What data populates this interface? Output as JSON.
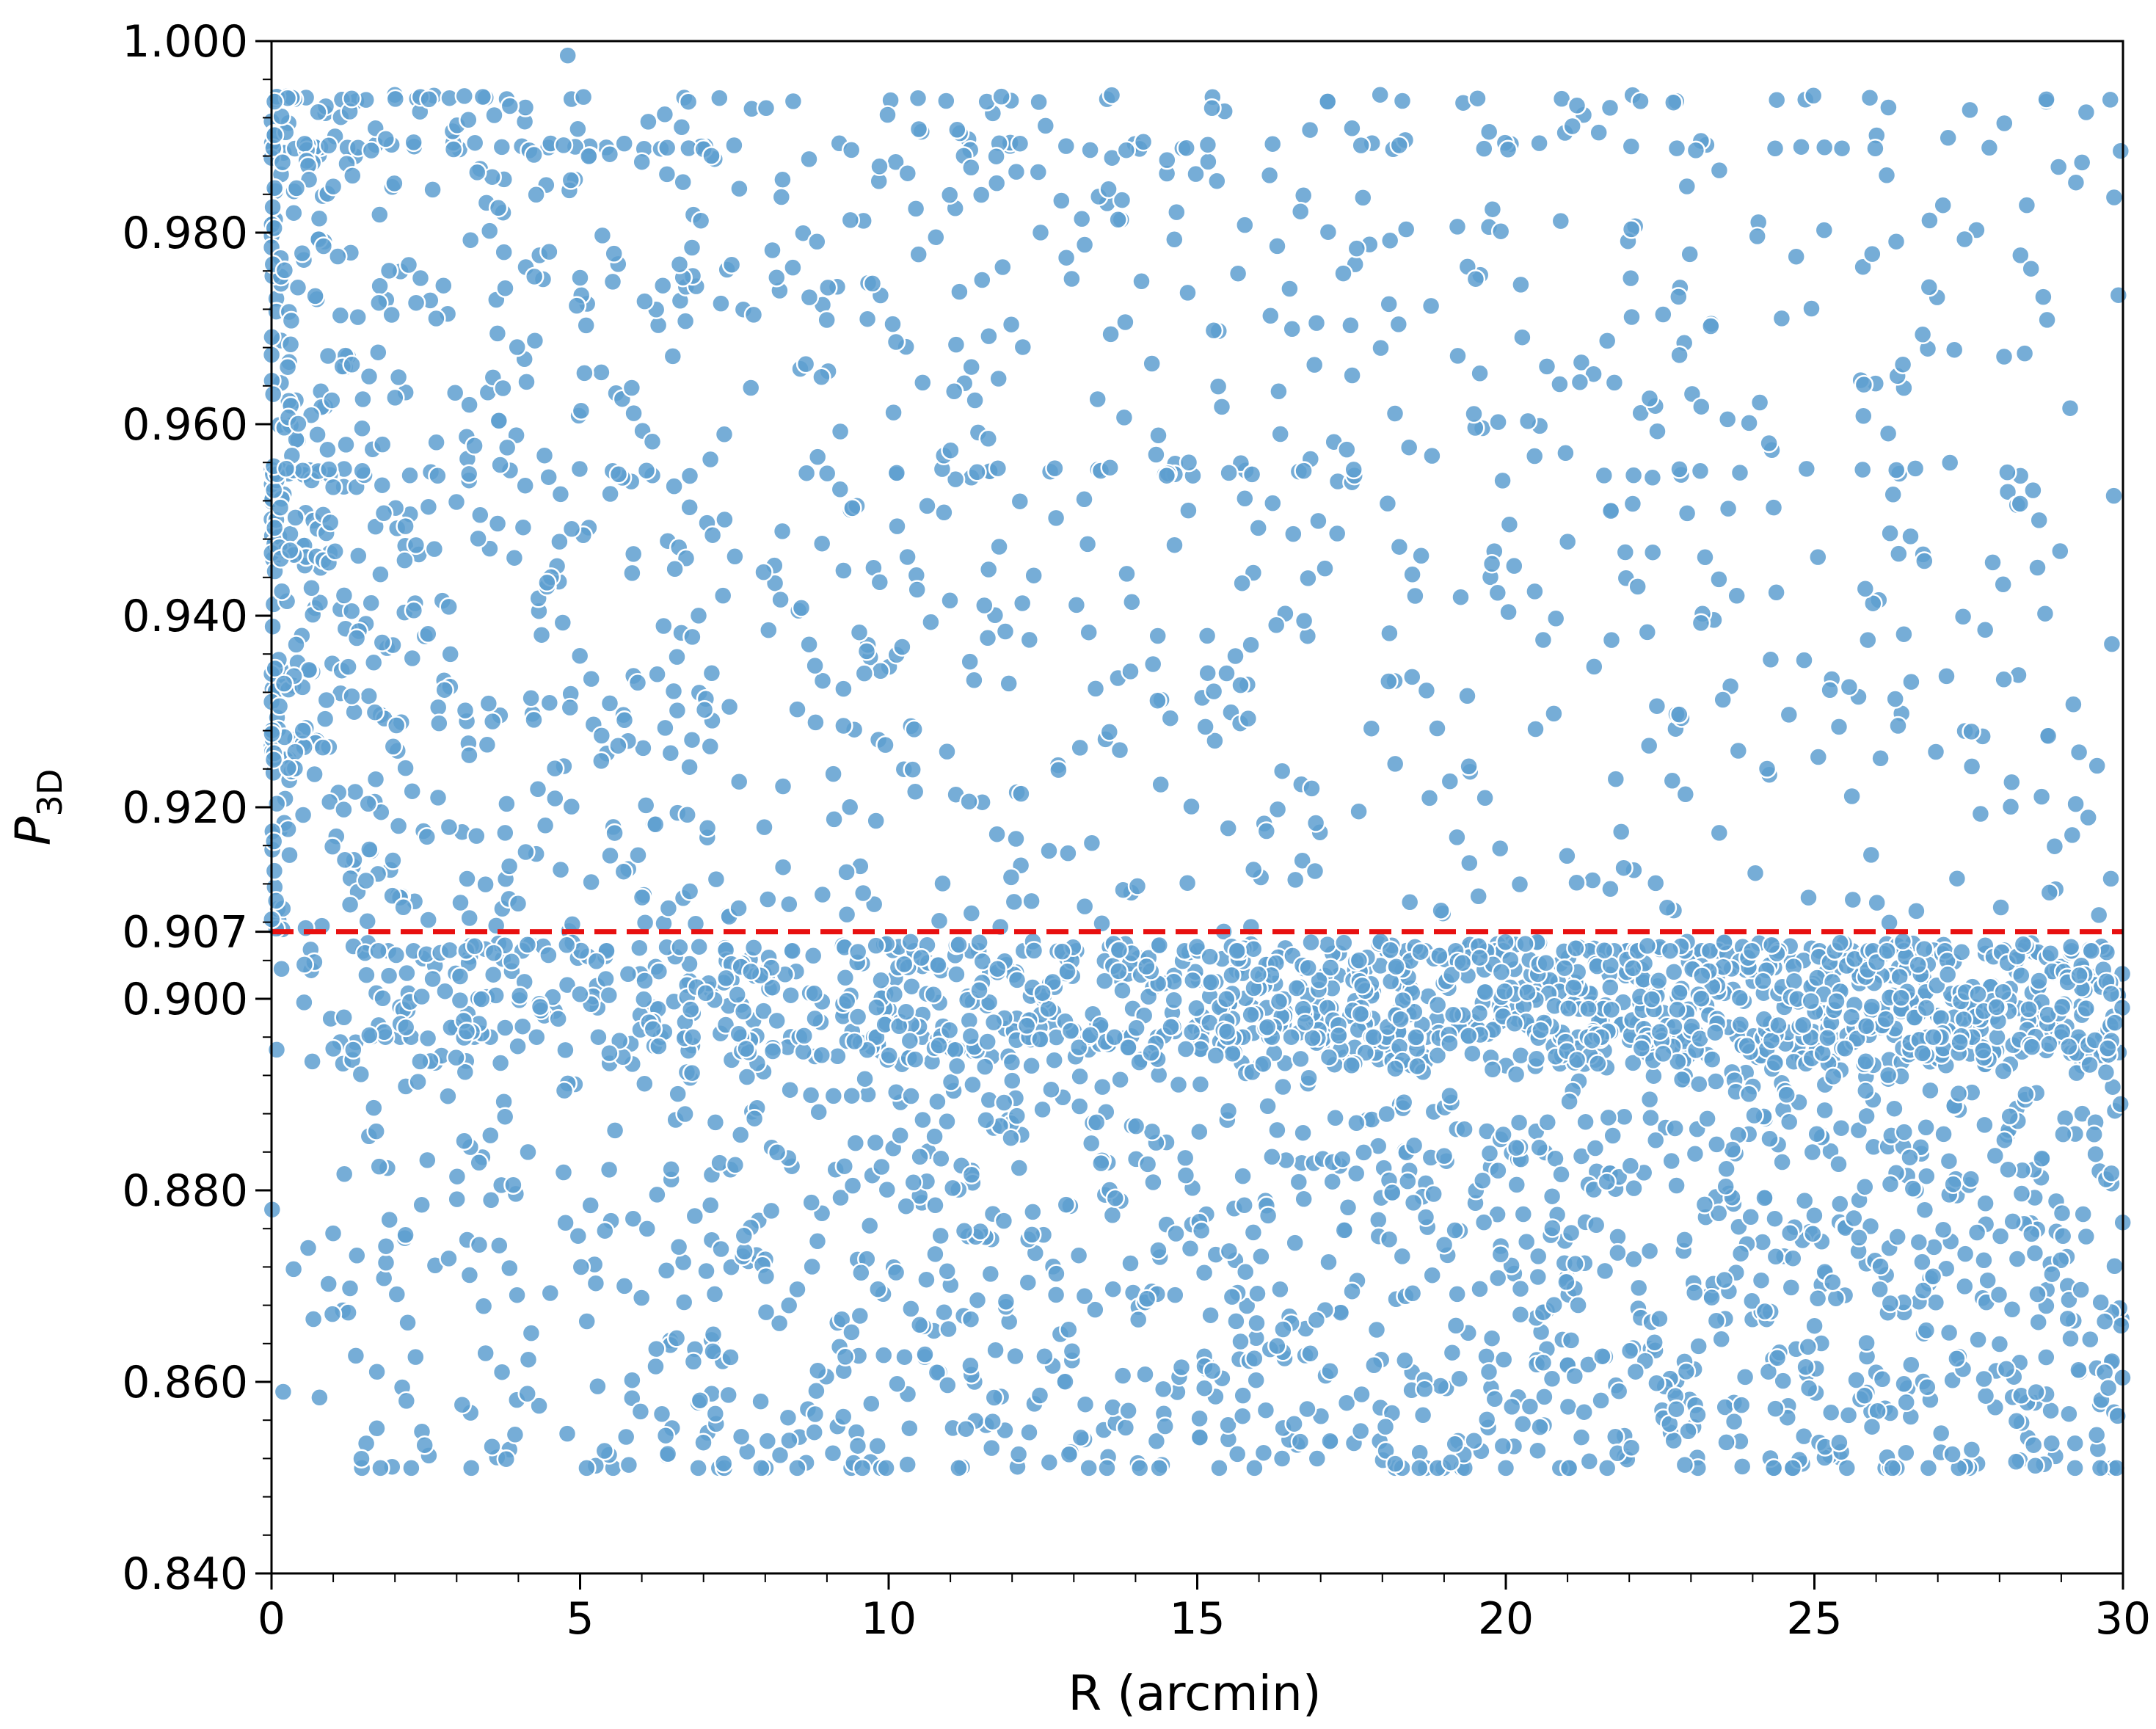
{
  "chart_data": {
    "type": "scatter",
    "title": "",
    "xlabel": "R (arcmin)",
    "ylabel_main": "P",
    "ylabel_sub": "3D",
    "xlim": [
      0,
      30
    ],
    "ylim": [
      0.84,
      1.0
    ],
    "x_ticks": [
      "0",
      "5",
      "10",
      "15",
      "20",
      "25",
      "30"
    ],
    "x_tick_values": [
      0,
      5,
      10,
      15,
      20,
      25,
      30
    ],
    "y_ticks": [
      "0.840",
      "0.860",
      "0.880",
      "0.900",
      "0.907",
      "0.920",
      "0.940",
      "0.960",
      "0.980",
      "1.000"
    ],
    "y_tick_values": [
      0.84,
      0.86,
      0.88,
      0.9,
      0.907,
      0.92,
      0.94,
      0.96,
      0.98,
      1.0
    ],
    "threshold": {
      "y": 0.907,
      "style": "dashed",
      "color": "#e81010"
    },
    "grid": false,
    "point_color": "#5e9fd0",
    "point_edge_color": "#ffffff",
    "distribution": {
      "above_threshold": {
        "y_range": [
          0.907,
          0.994
        ],
        "density_trend": "decreasing with R"
      },
      "below_threshold": {
        "y_range": [
          0.851,
          0.906
        ],
        "density_trend": "increasing with R"
      },
      "band_rows": [
        0.994,
        0.989,
        0.955,
        0.905,
        0.896,
        0.851
      ]
    }
  }
}
